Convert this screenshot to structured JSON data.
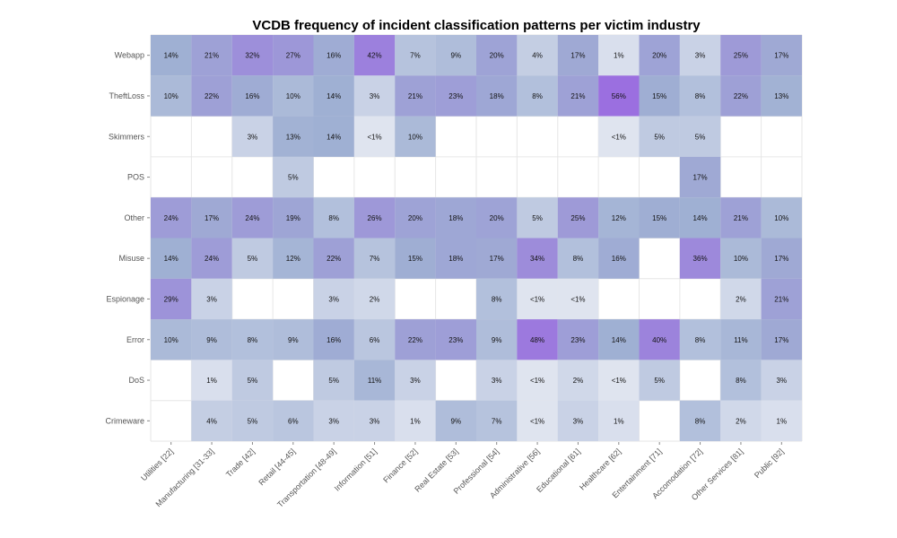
{
  "chart_data": {
    "type": "heatmap",
    "title": "VCDB frequency of incident classification patterns per victim industry",
    "xlabel": "",
    "ylabel": "",
    "x_categories": [
      "Utilities [22]",
      "Manufacturing [31-33]",
      "Trade [42]",
      "Retail [44-45]",
      "Transportation [48-49]",
      "Information [51]",
      "Finance [52]",
      "Real Estate [53]",
      "Professional [54]",
      "Administrative [56]",
      "Educational [61]",
      "Healthcare [62]",
      "Entertainment [71]",
      "Accomodation [72]",
      "Other Services [81]",
      "Public [92]"
    ],
    "y_categories": [
      "Webapp",
      "TheftLoss",
      "Skimmers",
      "POS",
      "Other",
      "Misuse",
      "Espionage",
      "Error",
      "DoS",
      "Crimeware"
    ],
    "values": [
      [
        14,
        21,
        32,
        27,
        16,
        42,
        7,
        9,
        20,
        4,
        17,
        1,
        20,
        3,
        25,
        17
      ],
      [
        10,
        22,
        16,
        10,
        14,
        3,
        21,
        23,
        18,
        8,
        21,
        56,
        15,
        8,
        22,
        13
      ],
      [
        null,
        null,
        3,
        13,
        14,
        0.5,
        10,
        null,
        null,
        null,
        null,
        0.5,
        5,
        5,
        null,
        null
      ],
      [
        null,
        null,
        null,
        5,
        null,
        null,
        null,
        null,
        null,
        null,
        null,
        null,
        null,
        17,
        null,
        null
      ],
      [
        24,
        17,
        24,
        19,
        8,
        26,
        20,
        18,
        20,
        5,
        25,
        12,
        15,
        14,
        21,
        10
      ],
      [
        14,
        24,
        5,
        12,
        22,
        7,
        15,
        18,
        17,
        34,
        8,
        16,
        null,
        36,
        10,
        17
      ],
      [
        29,
        3,
        null,
        null,
        3,
        2,
        null,
        null,
        8,
        0.5,
        0.5,
        null,
        null,
        null,
        2,
        21
      ],
      [
        10,
        9,
        8,
        9,
        16,
        6,
        22,
        23,
        9,
        48,
        23,
        14,
        40,
        8,
        11,
        17
      ],
      [
        null,
        1,
        5,
        null,
        5,
        11,
        3,
        null,
        3,
        0.5,
        2,
        0.5,
        5,
        null,
        8,
        3
      ],
      [
        null,
        4,
        5,
        6,
        3,
        3,
        1,
        9,
        7,
        0.5,
        3,
        1,
        null,
        8,
        2,
        1
      ]
    ],
    "labels": [
      [
        "14%",
        "21%",
        "32%",
        "27%",
        "16%",
        "42%",
        "7%",
        "9%",
        "20%",
        "4%",
        "17%",
        "1%",
        "20%",
        "3%",
        "25%",
        "17%"
      ],
      [
        "10%",
        "22%",
        "16%",
        "10%",
        "14%",
        "3%",
        "21%",
        "23%",
        "18%",
        "8%",
        "21%",
        "56%",
        "15%",
        "8%",
        "22%",
        "13%"
      ],
      [
        "",
        "",
        "3%",
        "13%",
        "14%",
        "<1%",
        "10%",
        "",
        "",
        "",
        "",
        "<1%",
        "5%",
        "5%",
        "",
        ""
      ],
      [
        "",
        "",
        "",
        "5%",
        "",
        "",
        "",
        "",
        "",
        "",
        "",
        "",
        "",
        "17%",
        "",
        ""
      ],
      [
        "24%",
        "17%",
        "24%",
        "19%",
        "8%",
        "26%",
        "20%",
        "18%",
        "20%",
        "5%",
        "25%",
        "12%",
        "15%",
        "14%",
        "21%",
        "10%"
      ],
      [
        "14%",
        "24%",
        "5%",
        "12%",
        "22%",
        "7%",
        "15%",
        "18%",
        "17%",
        "34%",
        "8%",
        "16%",
        "",
        "36%",
        "10%",
        "17%"
      ],
      [
        "29%",
        "3%",
        "",
        "",
        "3%",
        "2%",
        "",
        "",
        "8%",
        "<1%",
        "<1%",
        "",
        "",
        "",
        "2%",
        "21%"
      ],
      [
        "10%",
        "9%",
        "8%",
        "9%",
        "16%",
        "6%",
        "22%",
        "23%",
        "9%",
        "48%",
        "23%",
        "14%",
        "40%",
        "8%",
        "11%",
        "17%"
      ],
      [
        "",
        "1%",
        "5%",
        "",
        "5%",
        "11%",
        "3%",
        "",
        "3%",
        "<1%",
        "2%",
        "<1%",
        "5%",
        "",
        "8%",
        "3%"
      ],
      [
        "",
        "4%",
        "5%",
        "6%",
        "3%",
        "3%",
        "1%",
        "9%",
        "7%",
        "<1%",
        "3%",
        "1%",
        "",
        "8%",
        "2%",
        "1%"
      ]
    ],
    "colors": {
      "low": "#eef0f6",
      "mid": "#9fb0d3",
      "high": "#9b6fe0",
      "empty": "#ffffff",
      "grid": "#e6e6e6"
    },
    "grid": true,
    "legend": "none"
  }
}
